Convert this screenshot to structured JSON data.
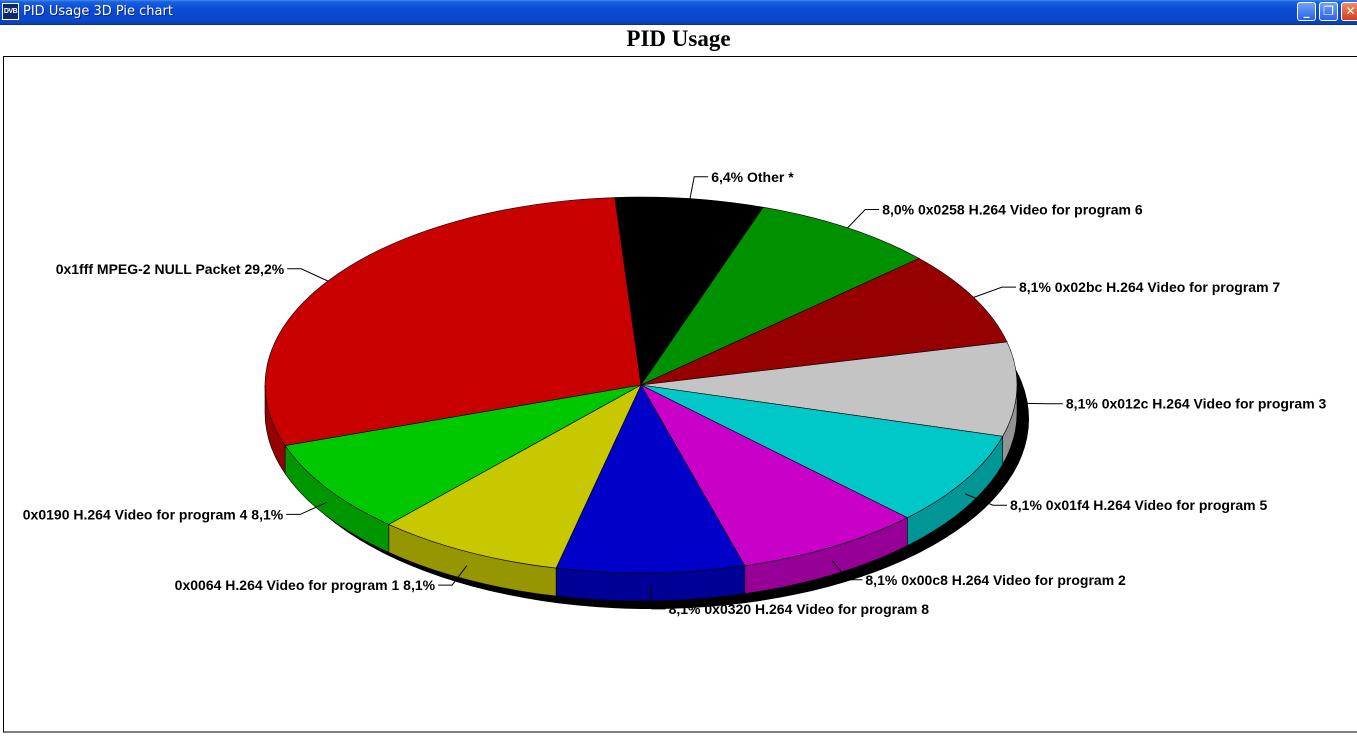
{
  "window": {
    "title": "PID Usage 3D Pie chart",
    "icon_text": "DVB",
    "icon": "dvb-app-icon",
    "minimize_glyph": "_",
    "restore_glyph": "❐",
    "close_glyph": "✕"
  },
  "chart_data": {
    "type": "pie",
    "title": "PID Usage",
    "three_d": true,
    "slices": [
      {
        "label": "6,4%  Other *",
        "value": 6.4,
        "color": "#000000"
      },
      {
        "label": "8,0% 0x0258 H.264 Video for program 6",
        "value": 8.0,
        "color": "#009100"
      },
      {
        "label": "8,1% 0x02bc H.264 Video for program 7",
        "value": 8.1,
        "color": "#960000"
      },
      {
        "label": "8,1% 0x012c H.264 Video for program 3",
        "value": 8.1,
        "color": "#c4c4c4"
      },
      {
        "label": "8,1% 0x01f4 H.264 Video for program 5",
        "value": 8.1,
        "color": "#00c8c8"
      },
      {
        "label": "8,1% 0x00c8 H.264 Video for program 2",
        "value": 8.1,
        "color": "#c800c8"
      },
      {
        "label": "8,1% 0x0320 H.264 Video for program 8",
        "value": 8.1,
        "color": "#0000c8"
      },
      {
        "label": "0x0064 H.264 Video for program 1 8,1%",
        "value": 8.1,
        "color": "#c8c800"
      },
      {
        "label": "0x0190 H.264 Video for program 4 8,1%",
        "value": 8.1,
        "color": "#00c800"
      },
      {
        "label": "0x1fff MPEG-2 NULL Packet 29,2%",
        "value": 29.2,
        "color": "#c80000"
      }
    ]
  }
}
